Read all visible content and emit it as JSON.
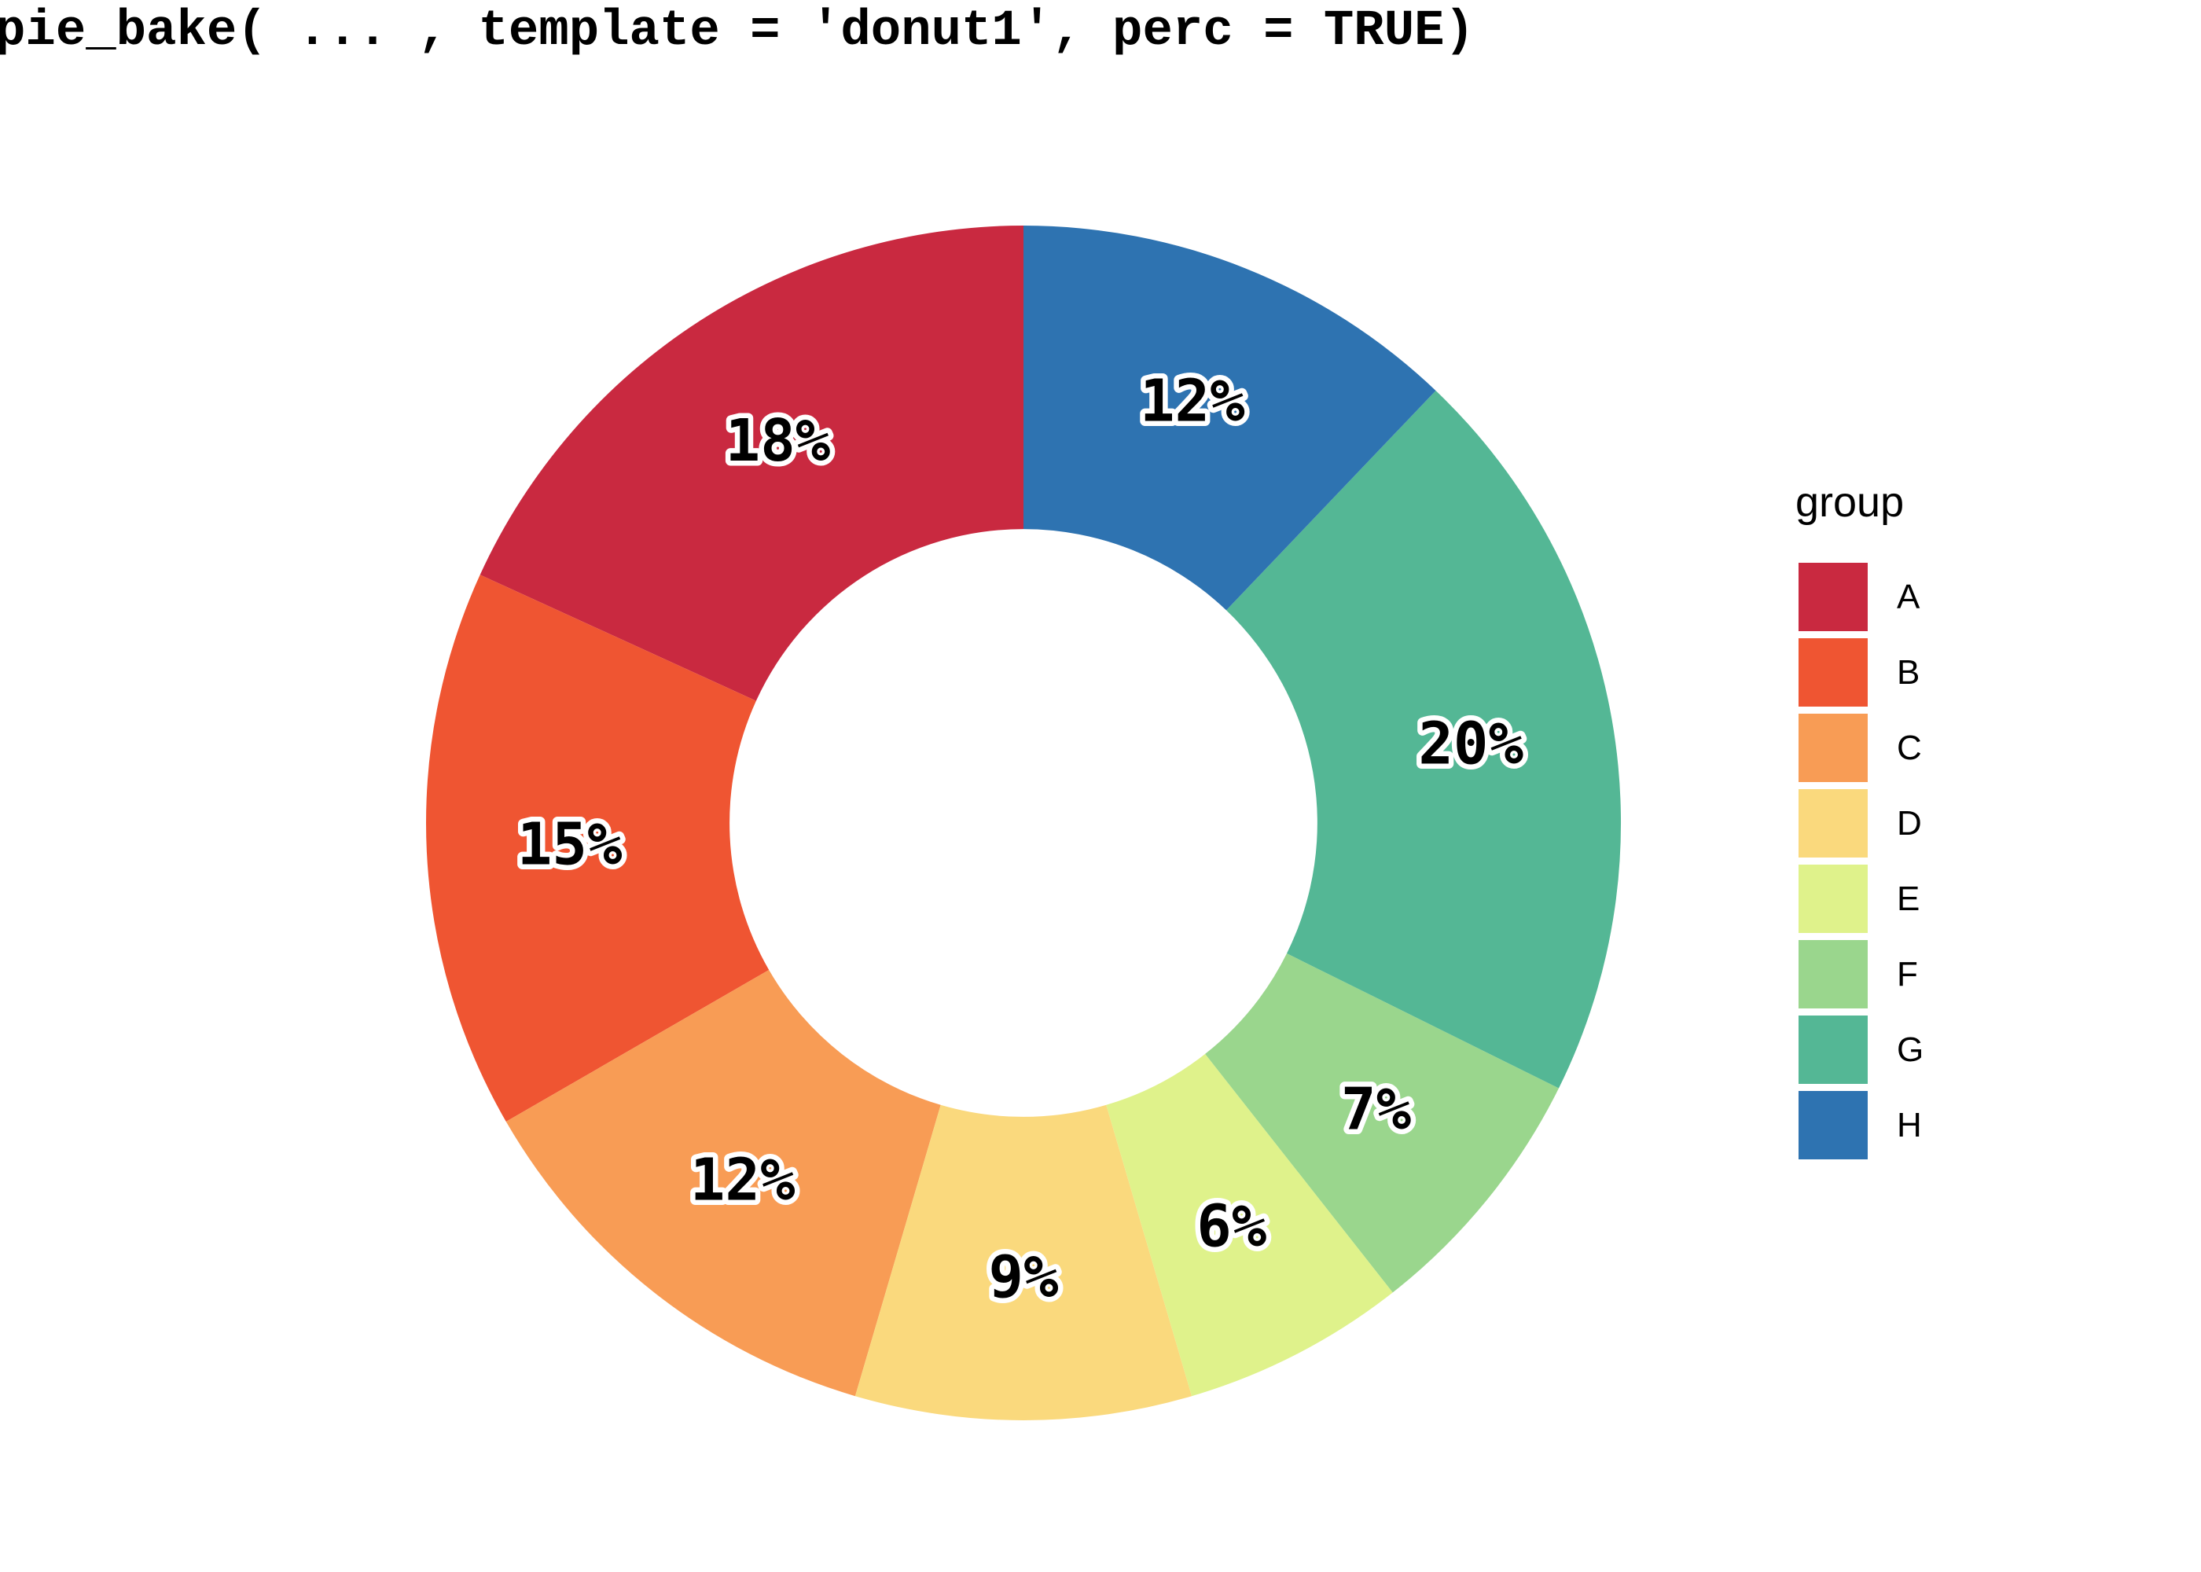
{
  "page": {
    "background": "#ffffff"
  },
  "legend": {
    "title": "group",
    "position": "right"
  },
  "chart_data": {
    "type": "pie",
    "subtype": "donut",
    "title": "pie_bake( ... , template = 'donut1', perc = TRUE)",
    "legend_title": "group",
    "legend_position": "right",
    "categories": [
      "A",
      "B",
      "C",
      "D",
      "E",
      "F",
      "G",
      "H"
    ],
    "values": [
      18,
      15,
      12,
      9,
      6,
      7,
      20,
      12
    ],
    "labels": [
      "18%",
      "15%",
      "12%",
      "9%",
      "6%",
      "7%",
      "20%",
      "12%"
    ],
    "colors": [
      "#C92940",
      "#EF5532",
      "#F89C55",
      "#FAD97D",
      "#DFF28B",
      "#9AD68D",
      "#54B795",
      "#2E73B1"
    ],
    "start_angle_deg": 0,
    "direction": "counterclockwise",
    "hole_ratio": 0.492,
    "label_radius_ratio": 0.7605,
    "label_color": "#000000",
    "label_halo_color": "#ffffff",
    "grid": false
  }
}
